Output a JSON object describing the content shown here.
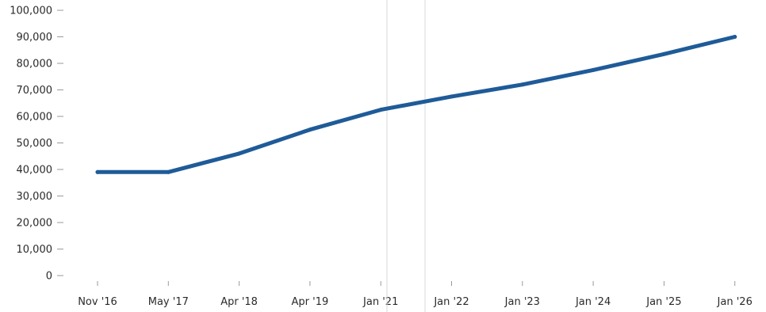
{
  "chart_data": {
    "type": "line",
    "title": "",
    "xlabel": "",
    "ylabel": "",
    "categories": [
      "Nov '16",
      "May '17",
      "Apr '18",
      "Apr '19",
      "Jan '21",
      "Jan '22",
      "Jan '23",
      "Jan '24",
      "Jan '25",
      "Jan '26"
    ],
    "series": [
      {
        "values": [
          39000,
          39000,
          46000,
          55000,
          62500,
          67500,
          72000,
          77500,
          83500,
          90000
        ]
      }
    ],
    "ylim": [
      0,
      100000
    ],
    "yticks": [
      0,
      10000,
      20000,
      30000,
      40000,
      50000,
      60000,
      70000,
      80000,
      90000,
      100000
    ],
    "ytick_labels": [
      "0",
      "10,000",
      "20,000",
      "30,000",
      "40,000",
      "50,000",
      "60,000",
      "70,000",
      "80,000",
      "90,000",
      "100,000"
    ],
    "grid": false,
    "legend": "none",
    "colors": {
      "line": "#1f5b98",
      "axis_text": "#2a2a2a",
      "tick": "#9a9a9a",
      "divider": "#d9d9d9"
    }
  }
}
